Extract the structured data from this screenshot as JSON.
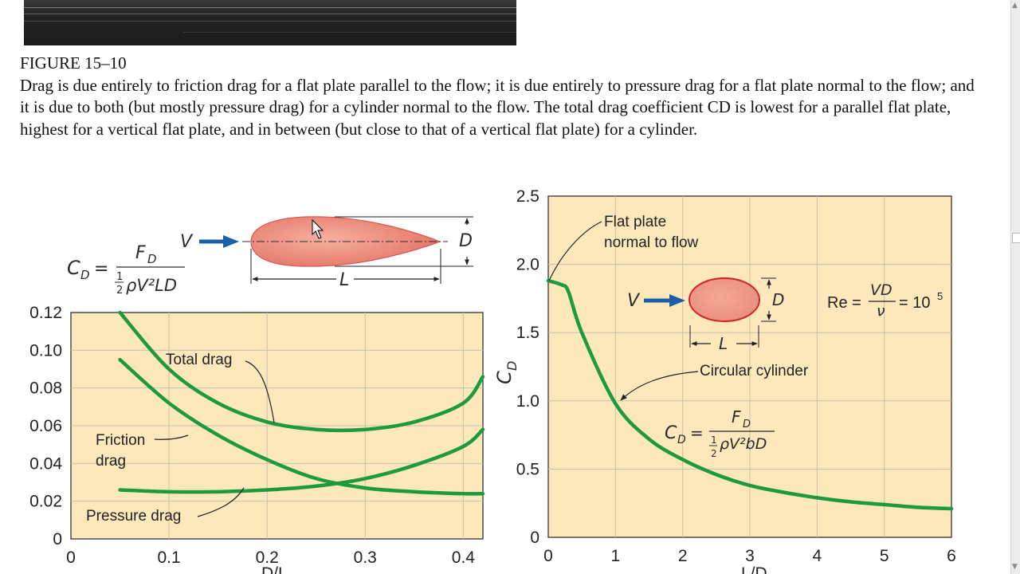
{
  "figure": {
    "number": "FIGURE 15–10",
    "caption": "Drag is due entirely to friction drag for a flat plate parallel to the flow; it is due entirely to pressure drag for a flat plate normal to the flow; and it is due to both (but mostly pressure drag) for a cylinder normal to the flow. The total drag coefficient CD is lowest for a parallel flat plate, highest for a vertical flat plate, and in between (but close to that of a vertical flat plate) for a cylinder."
  },
  "left_diagram": {
    "velocity": "V",
    "dim_d": "D",
    "dim_l": "L",
    "eq_lhs": "C",
    "eq_lhs_sub": "D",
    "eq_eqsign": "=",
    "eq_num": "F",
    "eq_num_sub": "D",
    "eq_den_half": "1",
    "eq_den_two": "2",
    "eq_den_rest": "ρV²LD"
  },
  "right_diagram": {
    "velocity": "V",
    "dim_d": "D",
    "dim_l": "L",
    "re_lhs": "Re =",
    "re_num": "VD",
    "re_den": "ν",
    "re_rhs": "= 10",
    "re_exp": "5",
    "eq_lhs": "C",
    "eq_lhs_sub": "D",
    "eq_eqsign": "=",
    "eq_num": "F",
    "eq_num_sub": "D",
    "eq_den_half": "1",
    "eq_den_two": "2",
    "eq_den_rest": "ρV²bD"
  },
  "chart_data": [
    {
      "type": "line",
      "x": [
        0.05,
        0.1,
        0.15,
        0.2,
        0.25,
        0.3,
        0.35,
        0.4,
        0.42
      ],
      "series": [
        {
          "name": "Total drag",
          "values": [
            0.12,
            0.09,
            0.072,
            0.062,
            0.058,
            0.058,
            0.062,
            0.072,
            0.086
          ]
        },
        {
          "name": "Friction drag",
          "values": [
            0.095,
            0.072,
            0.055,
            0.042,
            0.032,
            0.027,
            0.025,
            0.024,
            0.024
          ]
        },
        {
          "name": "Pressure drag",
          "values": [
            0.026,
            0.025,
            0.025,
            0.026,
            0.028,
            0.032,
            0.039,
            0.049,
            0.058
          ]
        }
      ],
      "xlim": [
        0,
        0.42
      ],
      "ylim": [
        0,
        0.12
      ],
      "xticks": [
        "0",
        "0.1",
        "0.2",
        "0.3",
        "0.4"
      ],
      "yticks": [
        "0",
        "0.02",
        "0.04",
        "0.06",
        "0.08",
        "0.10",
        "0.12"
      ],
      "xlabel": "D/L",
      "ylabel": "",
      "annotations": [
        "Total drag",
        "Friction",
        "drag",
        "Pressure drag"
      ],
      "grid": true
    },
    {
      "type": "line",
      "x": [
        0,
        0.2,
        0.3,
        0.5,
        1.0,
        1.5,
        2.0,
        2.5,
        3.0,
        3.5,
        4.0,
        4.5,
        5.0,
        5.5,
        6.0
      ],
      "series": [
        {
          "name": "Circular cylinder",
          "values": [
            1.88,
            1.85,
            1.8,
            1.5,
            0.98,
            0.72,
            0.57,
            0.46,
            0.38,
            0.33,
            0.29,
            0.26,
            0.24,
            0.22,
            0.21
          ]
        }
      ],
      "xlim": [
        0,
        6
      ],
      "ylim": [
        0,
        2.5
      ],
      "xticks": [
        "0",
        "1",
        "2",
        "3",
        "4",
        "5",
        "6"
      ],
      "yticks": [
        "0",
        "0.5",
        "1.0",
        "1.5",
        "2.0",
        "2.5"
      ],
      "xlabel": "L/D",
      "ylabel": "C",
      "ylabel_sub": "D",
      "annotations": [
        "Flat plate",
        "normal to flow",
        "Circular cylinder"
      ],
      "grid": true
    }
  ]
}
